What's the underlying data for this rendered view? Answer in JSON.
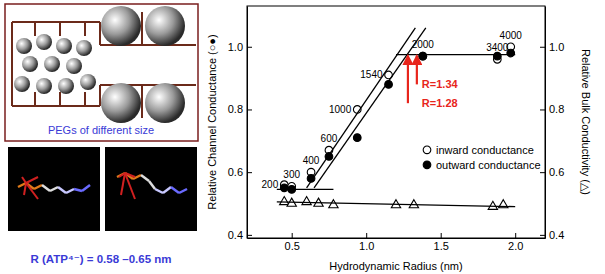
{
  "figure_texts": {
    "left_panel_caption": "PEGs of different size",
    "atp_radius": "R (ATP⁴⁻) = 0.58 –0.65 nm"
  },
  "chart_data": {
    "type": "scatter",
    "x_label": "Hydrodynamic Radius (nm)",
    "y_label": "Relative Channel Conductance (○●)",
    "y2_label": "Relative Bulk Conductivity (△)",
    "xlim": [
      0.2,
      2.2
    ],
    "xticks": [
      0.5,
      {
        "value": 1,
        "label": "1.0"
      },
      1.5,
      {
        "value": 2,
        "label": "2.0"
      }
    ],
    "ylim": [
      0.39,
      1.13
    ],
    "yticks": [
      0.4,
      0.6,
      0.8,
      {
        "value": 1,
        "label": "1.0"
      }
    ],
    "y2lim": [
      0.39,
      1.13
    ],
    "y2ticks": [
      0.4,
      0.6,
      0.8,
      {
        "value": 1,
        "label": "1.0"
      }
    ],
    "legend": "lower right",
    "point_labels": [
      "200",
      "300",
      "400",
      "600",
      "1000",
      "1540",
      "2000",
      "3400",
      "4000"
    ],
    "series": [
      {
        "name": "inward conductance",
        "type": "scatter",
        "marker": "circle-open",
        "color": "#000000",
        "x": [
          0.45,
          0.5,
          0.63,
          0.75,
          0.94,
          1.15,
          1.38,
          1.88,
          1.97
        ],
        "values": [
          0.56,
          0.555,
          0.6,
          0.67,
          0.8,
          0.91,
          0.97,
          0.96,
          1.0
        ]
      },
      {
        "name": "outward conductance",
        "type": "scatter",
        "marker": "circle",
        "color": "#000000",
        "x": [
          0.45,
          0.5,
          0.63,
          0.75,
          0.94,
          1.15,
          1.38,
          1.88,
          1.97
        ],
        "values": [
          0.55,
          0.545,
          0.58,
          0.65,
          0.71,
          0.88,
          0.97,
          0.97,
          0.98
        ]
      },
      {
        "type": "scatter",
        "marker": "triangle-open",
        "color": "#000000",
        "axis": "y2",
        "x": [
          0.45,
          0.5,
          0.6,
          0.68,
          0.78,
          1.2,
          1.32,
          1.85,
          1.92
        ],
        "values": [
          0.505,
          0.5,
          0.505,
          0.5,
          0.495,
          0.495,
          0.495,
          0.49,
          0.495
        ]
      },
      {
        "type": "line",
        "color": "#000000",
        "x": [
          0.4,
          0.78
        ],
        "values": [
          0.545,
          0.545
        ]
      },
      {
        "type": "line",
        "color": "#000000",
        "x": [
          0.6,
          1.33
        ],
        "values": [
          0.55,
          1.06
        ]
      },
      {
        "type": "line",
        "color": "#000000",
        "x": [
          0.65,
          1.4
        ],
        "values": [
          0.55,
          1.06
        ]
      },
      {
        "type": "line",
        "color": "#000000",
        "x": [
          1.2,
          2.0
        ],
        "values": [
          0.975,
          0.975
        ]
      },
      {
        "type": "line",
        "color": "#000000",
        "axis": "y2",
        "x": [
          0.4,
          2.0
        ],
        "values": [
          0.505,
          0.49
        ]
      }
    ],
    "annotations": [
      {
        "text": "R=1.34",
        "x": 1.34,
        "y": 0.97,
        "y_from": 0.88,
        "color": "#e8251c"
      },
      {
        "text": "R=1.28",
        "x": 1.28,
        "y": 0.97,
        "y_from": 0.82,
        "color": "#e8251c"
      }
    ]
  }
}
